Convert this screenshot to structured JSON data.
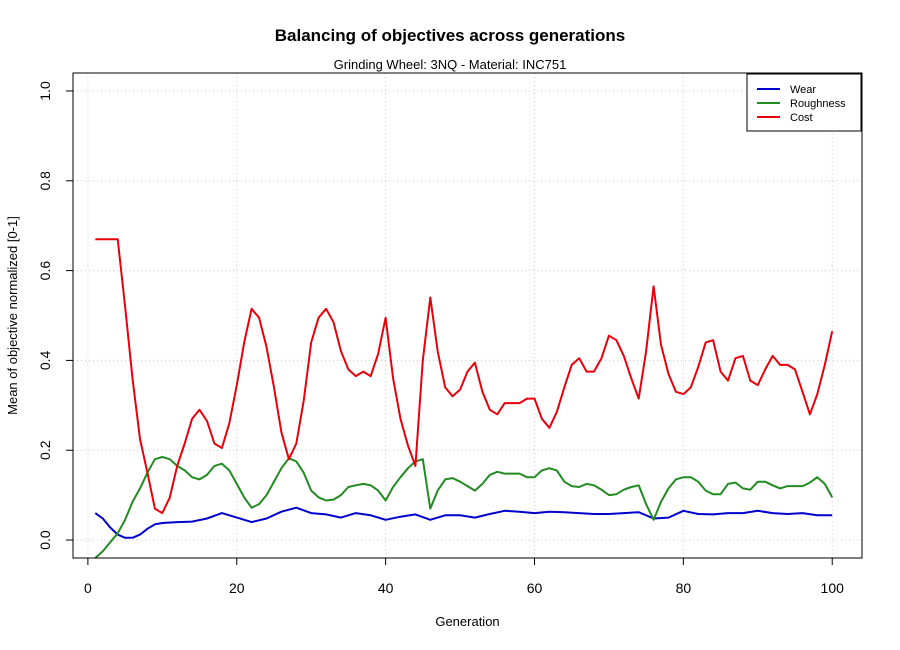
{
  "chart_data": {
    "type": "line",
    "title": "Balancing of objectives across generations",
    "subtitle": "Grinding Wheel: 3NQ - Material: INC751",
    "xlabel": "Generation",
    "ylabel": "Mean of objective normalized [0-1]",
    "xlim": [
      -2,
      104
    ],
    "ylim": [
      -0.04,
      1.04
    ],
    "xticks": [
      0,
      20,
      40,
      60,
      80,
      100
    ],
    "xtick_labels": [
      "0",
      "20",
      "40",
      "60",
      "80",
      "100"
    ],
    "yticks": [
      0.0,
      0.2,
      0.4,
      0.6,
      0.8,
      1.0
    ],
    "ytick_labels": [
      "0.0",
      "0.2",
      "0.4",
      "0.6",
      "0.8",
      "1.0"
    ],
    "grid": true,
    "legend_position": "top-right",
    "series": [
      {
        "name": "Wear",
        "color": "#0000CD",
        "x": [
          1,
          2,
          3,
          4,
          5,
          6,
          7,
          8,
          9,
          10,
          12,
          14,
          16,
          18,
          20,
          22,
          24,
          26,
          28,
          30,
          32,
          34,
          36,
          38,
          40,
          42,
          44,
          46,
          48,
          50,
          52,
          54,
          56,
          58,
          60,
          62,
          64,
          66,
          68,
          70,
          72,
          74,
          76,
          78,
          80,
          82,
          84,
          86,
          88,
          90,
          92,
          94,
          96,
          98,
          100
        ],
        "y": [
          0.06,
          0.048,
          0.028,
          0.012,
          0.005,
          0.005,
          0.012,
          0.025,
          0.035,
          0.038,
          0.04,
          0.041,
          0.048,
          0.06,
          0.05,
          0.04,
          0.048,
          0.063,
          0.072,
          0.06,
          0.057,
          0.05,
          0.06,
          0.055,
          0.045,
          0.052,
          0.057,
          0.045,
          0.055,
          0.055,
          0.05,
          0.058,
          0.065,
          0.063,
          0.06,
          0.063,
          0.062,
          0.06,
          0.058,
          0.058,
          0.06,
          0.062,
          0.048,
          0.05,
          0.065,
          0.058,
          0.057,
          0.06,
          0.06,
          0.065,
          0.06,
          0.058,
          0.06,
          0.055,
          0.055
        ]
      },
      {
        "name": "Roughness",
        "color": "#228B22",
        "x": [
          1,
          2,
          3,
          4,
          5,
          6,
          7,
          8,
          9,
          10,
          11,
          12,
          13,
          14,
          15,
          16,
          17,
          18,
          19,
          20,
          21,
          22,
          23,
          24,
          25,
          26,
          27,
          28,
          29,
          30,
          31,
          32,
          33,
          34,
          35,
          36,
          37,
          38,
          39,
          40,
          41,
          42,
          43,
          44,
          45,
          46,
          47,
          48,
          49,
          50,
          51,
          52,
          53,
          54,
          55,
          56,
          57,
          58,
          59,
          60,
          61,
          62,
          63,
          64,
          65,
          66,
          67,
          68,
          69,
          70,
          71,
          72,
          73,
          74,
          75,
          76,
          77,
          78,
          79,
          80,
          81,
          82,
          83,
          84,
          85,
          86,
          87,
          88,
          89,
          90,
          91,
          92,
          93,
          94,
          95,
          96,
          97,
          98,
          99,
          100
        ],
        "y": [
          -0.04,
          -0.025,
          -0.005,
          0.015,
          0.045,
          0.085,
          0.115,
          0.15,
          0.18,
          0.185,
          0.18,
          0.165,
          0.155,
          0.14,
          0.135,
          0.145,
          0.165,
          0.17,
          0.155,
          0.125,
          0.095,
          0.072,
          0.08,
          0.1,
          0.13,
          0.16,
          0.182,
          0.175,
          0.15,
          0.11,
          0.095,
          0.088,
          0.09,
          0.1,
          0.118,
          0.122,
          0.125,
          0.122,
          0.11,
          0.088,
          0.118,
          0.14,
          0.16,
          0.175,
          0.18,
          0.07,
          0.11,
          0.135,
          0.138,
          0.13,
          0.12,
          0.11,
          0.125,
          0.145,
          0.152,
          0.148,
          0.148,
          0.148,
          0.14,
          0.14,
          0.155,
          0.16,
          0.155,
          0.13,
          0.12,
          0.118,
          0.125,
          0.122,
          0.112,
          0.1,
          0.102,
          0.112,
          0.118,
          0.122,
          0.08,
          0.045,
          0.085,
          0.115,
          0.135,
          0.14,
          0.14,
          0.13,
          0.11,
          0.102,
          0.102,
          0.125,
          0.128,
          0.115,
          0.112,
          0.13,
          0.13,
          0.122,
          0.115,
          0.12,
          0.12,
          0.12,
          0.128,
          0.14,
          0.125,
          0.095
        ]
      },
      {
        "name": "Cost",
        "color": "#E8000B",
        "x": [
          1,
          2,
          3,
          4,
          5,
          6,
          7,
          8,
          9,
          10,
          11,
          12,
          13,
          14,
          15,
          16,
          17,
          18,
          19,
          20,
          21,
          22,
          23,
          24,
          25,
          26,
          27,
          28,
          29,
          30,
          31,
          32,
          33,
          34,
          35,
          36,
          37,
          38,
          39,
          40,
          41,
          42,
          43,
          44,
          45,
          46,
          47,
          48,
          49,
          50,
          51,
          52,
          53,
          54,
          55,
          56,
          57,
          58,
          59,
          60,
          61,
          62,
          63,
          64,
          65,
          66,
          67,
          68,
          69,
          70,
          71,
          72,
          73,
          74,
          75,
          76,
          77,
          78,
          79,
          80,
          81,
          82,
          83,
          84,
          85,
          86,
          87,
          88,
          89,
          90,
          91,
          92,
          93,
          94,
          95,
          96,
          97,
          98,
          99,
          100
        ],
        "y": [
          0.67,
          0.67,
          0.67,
          0.67,
          0.52,
          0.36,
          0.225,
          0.15,
          0.07,
          0.06,
          0.095,
          0.165,
          0.215,
          0.27,
          0.29,
          0.265,
          0.215,
          0.205,
          0.26,
          0.345,
          0.44,
          0.515,
          0.495,
          0.43,
          0.34,
          0.24,
          0.18,
          0.215,
          0.31,
          0.44,
          0.495,
          0.515,
          0.485,
          0.42,
          0.38,
          0.365,
          0.375,
          0.365,
          0.415,
          0.495,
          0.36,
          0.27,
          0.21,
          0.165,
          0.4,
          0.54,
          0.42,
          0.34,
          0.32,
          0.335,
          0.375,
          0.395,
          0.33,
          0.29,
          0.28,
          0.305,
          0.305,
          0.305,
          0.315,
          0.315,
          0.27,
          0.25,
          0.285,
          0.34,
          0.39,
          0.405,
          0.375,
          0.375,
          0.405,
          0.455,
          0.445,
          0.41,
          0.36,
          0.315,
          0.42,
          0.565,
          0.435,
          0.37,
          0.33,
          0.325,
          0.34,
          0.385,
          0.44,
          0.445,
          0.375,
          0.355,
          0.405,
          0.41,
          0.355,
          0.345,
          0.38,
          0.41,
          0.39,
          0.39,
          0.38,
          0.33,
          0.28,
          0.325,
          0.39,
          0.465
        ]
      }
    ]
  }
}
